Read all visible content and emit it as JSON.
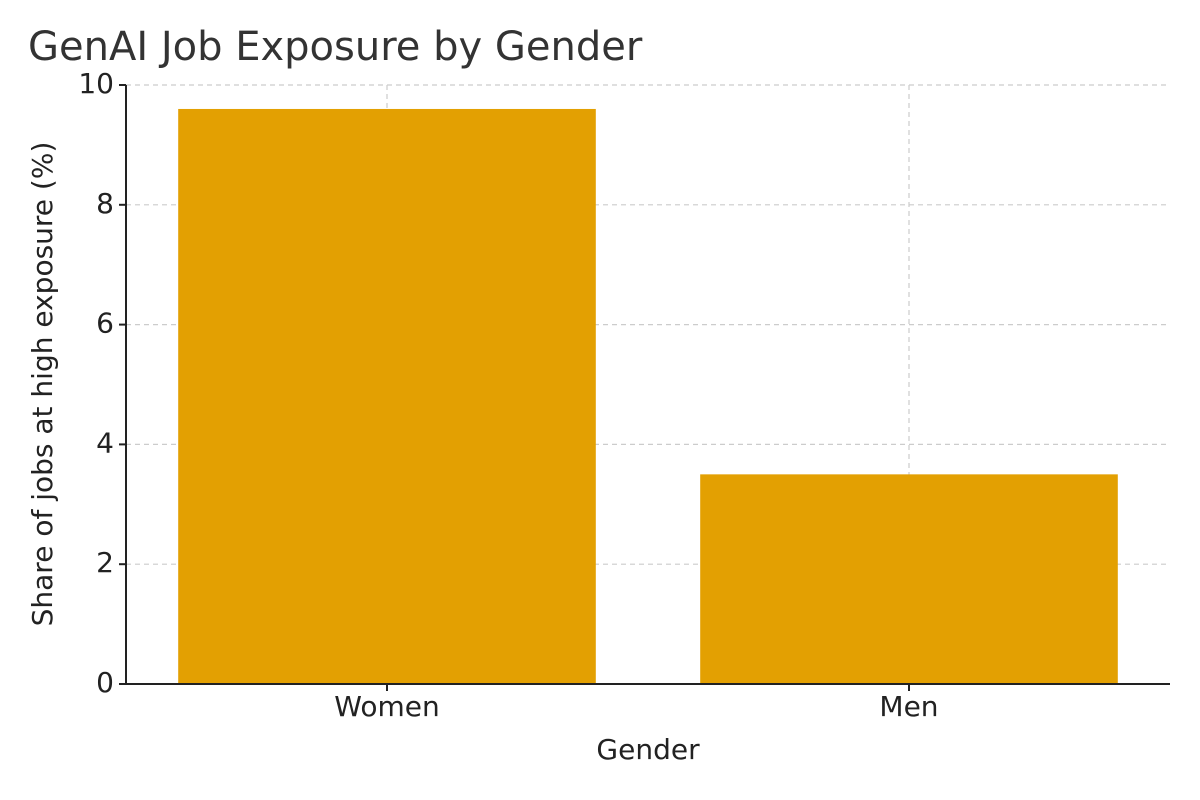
{
  "chart_data": {
    "type": "bar",
    "title": "GenAI Job Exposure by Gender",
    "x_label": "Gender",
    "y_label": "Share of jobs at high exposure (%)",
    "categories": [
      "Women",
      "Men"
    ],
    "values": [
      9.6,
      3.5
    ],
    "color": "#e3a002",
    "ylim": [
      0,
      10
    ],
    "yticks": [
      0,
      2,
      4,
      6,
      8,
      10
    ],
    "grid": true
  }
}
